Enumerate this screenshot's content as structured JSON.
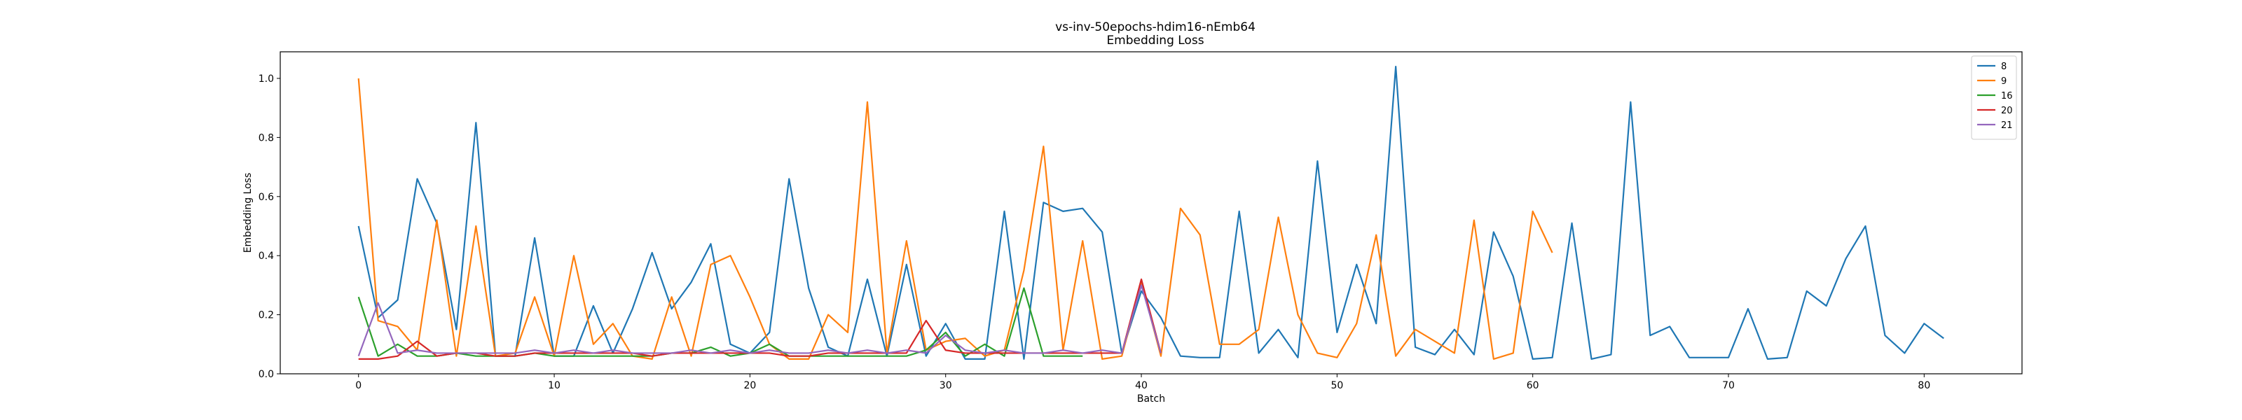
{
  "chart_data": {
    "type": "line",
    "title": "vs-inv-50epochs-hdim16-nEmb64",
    "subtitle": "Embedding Loss",
    "xlabel": "Batch",
    "ylabel": "Embedding Loss",
    "xlim": [
      -4,
      85
    ],
    "ylim": [
      0,
      1.09
    ],
    "xticks": [
      0,
      10,
      20,
      30,
      40,
      50,
      60,
      70,
      80
    ],
    "yticks": [
      0.0,
      0.2,
      0.4,
      0.6,
      0.8,
      1.0
    ],
    "xtick_labels": [
      "0",
      "10",
      "20",
      "30",
      "40",
      "50",
      "60",
      "70",
      "80"
    ],
    "ytick_labels": [
      "0.0",
      "0.2",
      "0.4",
      "0.6",
      "0.8",
      "1.0"
    ],
    "grid": false,
    "legend_position": "top-right",
    "series": [
      {
        "name": "8",
        "color": "#1f77b4",
        "values": [
          0.5,
          0.19,
          0.25,
          0.66,
          0.51,
          0.15,
          0.85,
          0.06,
          0.06,
          0.46,
          0.06,
          0.06,
          0.23,
          0.07,
          0.22,
          0.41,
          0.22,
          0.31,
          0.44,
          0.1,
          0.07,
          0.14,
          0.66,
          0.29,
          0.09,
          0.06,
          0.32,
          0.06,
          0.37,
          0.06,
          0.17,
          0.05,
          0.05,
          0.55,
          0.05,
          0.58,
          0.55,
          0.56,
          0.48,
          0.07,
          0.28,
          0.19,
          0.06,
          0.055,
          0.055,
          0.55,
          0.07,
          0.15,
          0.055,
          0.72,
          0.14,
          0.37,
          0.17,
          1.04,
          0.09,
          0.065,
          0.15,
          0.065,
          0.48,
          0.33,
          0.05,
          0.055,
          0.51,
          0.05,
          0.065,
          0.92,
          0.13,
          0.16,
          0.055,
          0.055,
          0.055,
          0.22,
          0.05,
          0.055,
          0.28,
          0.23,
          0.39,
          0.5,
          0.13,
          0.07,
          0.17,
          0.12
        ]
      },
      {
        "name": "9",
        "color": "#ff7f0e",
        "values": [
          1.0,
          0.18,
          0.16,
          0.08,
          0.52,
          0.06,
          0.5,
          0.06,
          0.07,
          0.26,
          0.06,
          0.4,
          0.1,
          0.17,
          0.06,
          0.05,
          0.26,
          0.06,
          0.37,
          0.4,
          0.26,
          0.1,
          0.05,
          0.05,
          0.2,
          0.14,
          0.92,
          0.07,
          0.45,
          0.08,
          0.11,
          0.12,
          0.06,
          0.08,
          0.35,
          0.77,
          0.08,
          0.45,
          0.05,
          0.06,
          0.31,
          0.06,
          0.56,
          0.47,
          0.1,
          0.1,
          0.15,
          0.53,
          0.2,
          0.07,
          0.055,
          0.17,
          0.47,
          0.06,
          0.15,
          0.11,
          0.07,
          0.52,
          0.05,
          0.07,
          0.55,
          0.41
        ]
      },
      {
        "name": "16",
        "color": "#2ca02c",
        "values": [
          0.26,
          0.06,
          0.1,
          0.06,
          0.06,
          0.07,
          0.06,
          0.06,
          0.06,
          0.07,
          0.06,
          0.06,
          0.06,
          0.06,
          0.06,
          0.06,
          0.07,
          0.07,
          0.09,
          0.06,
          0.07,
          0.1,
          0.06,
          0.06,
          0.06,
          0.06,
          0.06,
          0.06,
          0.06,
          0.08,
          0.14,
          0.06,
          0.1,
          0.06,
          0.29,
          0.06,
          0.06,
          0.06
        ]
      },
      {
        "name": "20",
        "color": "#d62728",
        "values": [
          0.05,
          0.05,
          0.06,
          0.11,
          0.06,
          0.07,
          0.07,
          0.06,
          0.06,
          0.07,
          0.07,
          0.07,
          0.07,
          0.07,
          0.07,
          0.06,
          0.07,
          0.07,
          0.07,
          0.07,
          0.07,
          0.07,
          0.06,
          0.06,
          0.07,
          0.07,
          0.07,
          0.07,
          0.07,
          0.18,
          0.08,
          0.07,
          0.07,
          0.07,
          0.07,
          0.07,
          0.07,
          0.07,
          0.07,
          0.07,
          0.32,
          0.07
        ]
      },
      {
        "name": "21",
        "color": "#9467bd",
        "values": [
          0.06,
          0.24,
          0.07,
          0.08,
          0.07,
          0.07,
          0.07,
          0.07,
          0.07,
          0.08,
          0.07,
          0.08,
          0.07,
          0.08,
          0.07,
          0.07,
          0.07,
          0.08,
          0.07,
          0.08,
          0.07,
          0.08,
          0.07,
          0.07,
          0.08,
          0.07,
          0.08,
          0.07,
          0.08,
          0.07,
          0.13,
          0.08,
          0.07,
          0.08,
          0.07,
          0.07,
          0.08,
          0.07,
          0.08,
          0.07,
          0.3,
          0.07
        ]
      }
    ]
  }
}
